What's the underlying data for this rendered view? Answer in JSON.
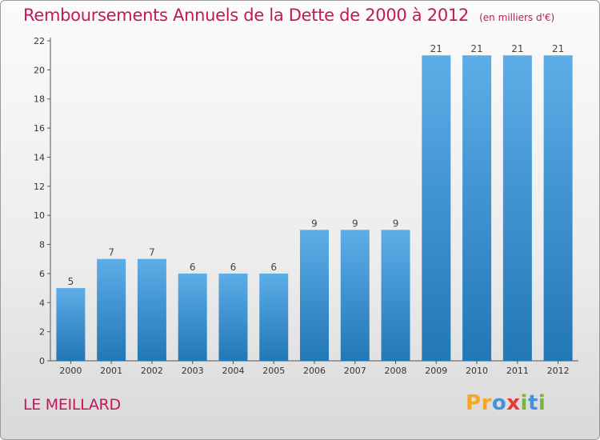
{
  "chart_data": {
    "type": "bar",
    "title": "Remboursements Annuels de la Dette de 2000 à 2012",
    "unit_note": "(en milliers d'€)",
    "categories": [
      "2000",
      "2001",
      "2002",
      "2003",
      "2004",
      "2005",
      "2006",
      "2007",
      "2008",
      "2009",
      "2010",
      "2011",
      "2012"
    ],
    "values": [
      5,
      7,
      7,
      6,
      6,
      6,
      9,
      9,
      9,
      21,
      21,
      21,
      21
    ],
    "data_labels": [
      "5",
      "7",
      "7",
      "6",
      "6",
      "6",
      "9",
      "9",
      "9",
      "21",
      "21",
      "21",
      "21"
    ],
    "ylim": [
      0,
      22
    ],
    "yticks": [
      0,
      2,
      4,
      6,
      8,
      10,
      12,
      14,
      16,
      18,
      20,
      22
    ],
    "xlabel": "",
    "ylabel": "",
    "grid": false,
    "bar_color_top": "#5dade8",
    "bar_color_bottom": "#2277b5"
  },
  "commune": "LE MEILLARD",
  "logo": {
    "letters": [
      "P",
      "r",
      "o",
      "x",
      "i",
      "t",
      "i"
    ],
    "colors": [
      "#f5a623",
      "#f5a623",
      "#4a90d9",
      "#e53935",
      "#7cb342",
      "#4a90d9",
      "#7cb342"
    ]
  }
}
